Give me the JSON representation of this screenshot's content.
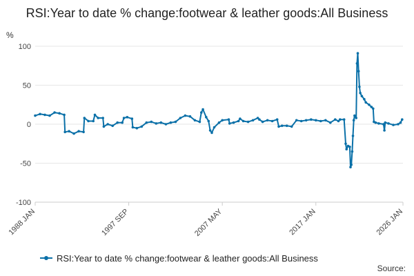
{
  "chart_data": {
    "type": "line",
    "title": "RSI:Year to date % change:footwear & leather goods:All Business",
    "ylabel": "%",
    "ylim": [
      -100,
      100
    ],
    "yticks": [
      100,
      50,
      0,
      -50,
      -100
    ],
    "xlim": [
      "1988 JAN",
      "2026 JAN"
    ],
    "xticks": [
      "1988 JAN",
      "1997 SEP",
      "2007 MAY",
      "2017 JAN",
      "2026 JAN"
    ],
    "grid": "horizontal",
    "legend_position": "bottom",
    "color": "#0a70a8",
    "series": [
      {
        "name": "RSI:Year to date % change:footwear & leather goods:All Business",
        "points": [
          [
            "1988 JAN",
            11
          ],
          [
            "1988 JUL",
            13
          ],
          [
            "1989 JAN",
            12
          ],
          [
            "1989 JUL",
            11
          ],
          [
            "1990 JAN",
            15
          ],
          [
            "1990 JUL",
            14
          ],
          [
            "1991 JAN",
            12
          ],
          [
            "1991 FEB",
            -10
          ],
          [
            "1991 JUL",
            -9
          ],
          [
            "1992 JAN",
            -12
          ],
          [
            "1992 JUL",
            -9
          ],
          [
            "1993 JAN",
            -10
          ],
          [
            "1993 FEB",
            8
          ],
          [
            "1993 JUL",
            4
          ],
          [
            "1994 JAN",
            4
          ],
          [
            "1994 MAR",
            12
          ],
          [
            "1994 JUL",
            8
          ],
          [
            "1995 JAN",
            8
          ],
          [
            "1995 FEB",
            -3
          ],
          [
            "1995 JUL",
            0
          ],
          [
            "1996 JAN",
            -2
          ],
          [
            "1996 JUL",
            2
          ],
          [
            "1997 JAN",
            2
          ],
          [
            "1997 MAR",
            8
          ],
          [
            "1997 JUL",
            9
          ],
          [
            "1998 JAN",
            7
          ],
          [
            "1998 FEB",
            -4
          ],
          [
            "1998 JUL",
            -5
          ],
          [
            "1999 JAN",
            -3
          ],
          [
            "1999 JUL",
            2
          ],
          [
            "2000 JAN",
            3
          ],
          [
            "2000 JUL",
            1
          ],
          [
            "2001 JAN",
            2
          ],
          [
            "2001 JUL",
            0
          ],
          [
            "2002 JAN",
            2
          ],
          [
            "2002 JUL",
            3
          ],
          [
            "2003 JAN",
            8
          ],
          [
            "2003 JUL",
            11
          ],
          [
            "2004 JAN",
            10
          ],
          [
            "2004 JUL",
            5
          ],
          [
            "2005 JAN",
            3
          ],
          [
            "2005 MAR",
            15
          ],
          [
            "2005 MAY",
            19
          ],
          [
            "2005 SEP",
            9
          ],
          [
            "2005 DEC",
            4
          ],
          [
            "2006 FEB",
            -8
          ],
          [
            "2006 APR",
            -11
          ],
          [
            "2006 JUL",
            -4
          ],
          [
            "2007 JAN",
            2
          ],
          [
            "2007 MAY",
            5
          ],
          [
            "2008 JAN",
            6
          ],
          [
            "2008 FEB",
            1
          ],
          [
            "2008 JUL",
            2
          ],
          [
            "2009 JAN",
            4
          ],
          [
            "2009 MAR",
            7
          ],
          [
            "2009 JUL",
            4
          ],
          [
            "2010 JAN",
            3
          ],
          [
            "2010 JUL",
            5
          ],
          [
            "2011 JAN",
            8
          ],
          [
            "2011 MAR",
            6
          ],
          [
            "2011 JUL",
            3
          ],
          [
            "2012 JAN",
            5
          ],
          [
            "2012 JUL",
            4
          ],
          [
            "2013 JAN",
            6
          ],
          [
            "2013 MAR",
            -3
          ],
          [
            "2013 JUL",
            -2
          ],
          [
            "2014 JAN",
            -2
          ],
          [
            "2014 JUL",
            -3
          ],
          [
            "2015 JAN",
            5
          ],
          [
            "2015 JUL",
            4
          ],
          [
            "2016 JAN",
            5
          ],
          [
            "2016 JUL",
            6
          ],
          [
            "2017 JAN",
            5
          ],
          [
            "2017 JUL",
            4
          ],
          [
            "2018 JAN",
            5
          ],
          [
            "2018 JUL",
            2
          ],
          [
            "2019 JAN",
            6
          ],
          [
            "2019 MAY",
            4
          ],
          [
            "2019 JUL",
            6
          ],
          [
            "2019 DEC",
            6
          ],
          [
            "2020 FEB",
            -25
          ],
          [
            "2020 MAR",
            -32
          ],
          [
            "2020 MAY",
            -28
          ],
          [
            "2020 JUL",
            -29
          ],
          [
            "2020 AUG",
            -55
          ],
          [
            "2020 SEP",
            -52
          ],
          [
            "2020 OCT",
            -35
          ],
          [
            "2020 NOV",
            -15
          ],
          [
            "2020 DEC",
            5
          ],
          [
            "2021 JAN",
            11
          ],
          [
            "2021 MAR",
            8
          ],
          [
            "2021 APR",
            78
          ],
          [
            "2021 MAY",
            91
          ],
          [
            "2021 JUN",
            68
          ],
          [
            "2021 JUL",
            48
          ],
          [
            "2021 AUG",
            40
          ],
          [
            "2021 OCT",
            36
          ],
          [
            "2022 JAN",
            32
          ],
          [
            "2022 MAR",
            28
          ],
          [
            "2022 JUL",
            25
          ],
          [
            "2022 OCT",
            22
          ],
          [
            "2022 DEC",
            20
          ],
          [
            "2023 JAN",
            3
          ],
          [
            "2023 MAR",
            2
          ],
          [
            "2023 JUL",
            1
          ],
          [
            "2024 JAN",
            0
          ],
          [
            "2024 FEB",
            -8
          ],
          [
            "2024 MAR",
            2
          ],
          [
            "2024 JUL",
            1
          ],
          [
            "2025 JAN",
            -1
          ],
          [
            "2025 JUL",
            0
          ],
          [
            "2025 OCT",
            2
          ],
          [
            "2025 DEC",
            6
          ]
        ]
      }
    ],
    "source_label": "Source:"
  }
}
